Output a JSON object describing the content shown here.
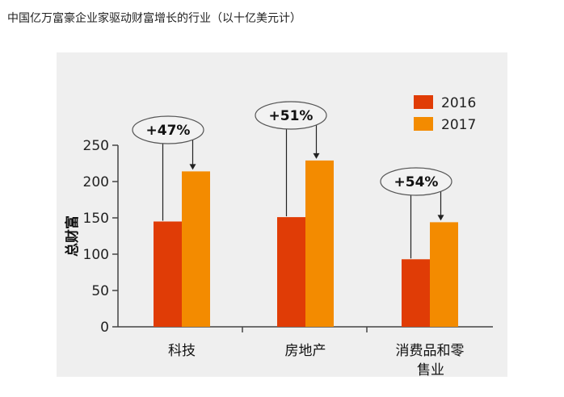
{
  "page": {
    "title": "中国亿万富豪企业家驱动财富增长的行业（以十亿美元计）"
  },
  "chart_data": {
    "type": "bar",
    "title": "",
    "xlabel": "",
    "ylabel": "总财富",
    "ylim": [
      0,
      250
    ],
    "yticks": [
      0,
      50,
      100,
      150,
      200,
      250
    ],
    "grid": false,
    "legend_position": "top-right",
    "categories": [
      "科技",
      "房地产",
      "消费品和零售业"
    ],
    "category_lines": [
      [
        "科技"
      ],
      [
        "房地产"
      ],
      [
        "消费品和零",
        "售业"
      ]
    ],
    "series": [
      {
        "name": "2016",
        "color": "#e03c06",
        "values": [
          145,
          151,
          93
        ]
      },
      {
        "name": "2017",
        "color": "#f38b00",
        "values": [
          214,
          229,
          144
        ]
      }
    ],
    "annotations": [
      "+47%",
      "+51%",
      "+54%"
    ]
  }
}
